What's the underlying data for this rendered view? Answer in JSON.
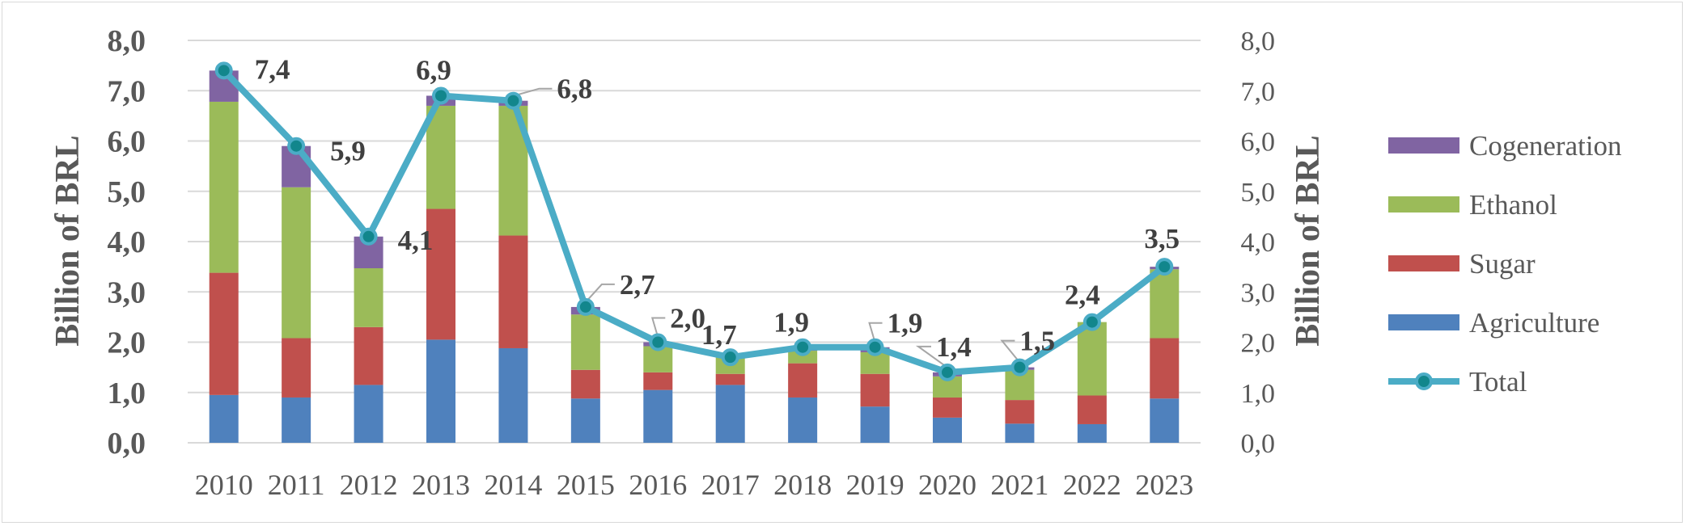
{
  "chart_data": {
    "type": "bar",
    "stacked": true,
    "categories": [
      "2010",
      "2011",
      "2012",
      "2013",
      "2014",
      "2015",
      "2016",
      "2017",
      "2018",
      "2019",
      "2020",
      "2021",
      "2022",
      "2023"
    ],
    "series": [
      {
        "name": "Agriculture",
        "kind": "bar",
        "color": "#4f81bd",
        "values": [
          0.95,
          0.9,
          1.15,
          2.05,
          1.88,
          0.88,
          1.05,
          1.15,
          0.9,
          0.72,
          0.5,
          0.38,
          0.37,
          0.88
        ]
      },
      {
        "name": "Sugar",
        "kind": "bar",
        "color": "#c0504d",
        "values": [
          2.43,
          1.18,
          1.15,
          2.6,
          2.24,
          0.57,
          0.35,
          0.22,
          0.68,
          0.65,
          0.4,
          0.47,
          0.57,
          1.2
        ]
      },
      {
        "name": "Ethanol",
        "kind": "bar",
        "color": "#9bbb59",
        "values": [
          3.4,
          3.0,
          1.17,
          2.05,
          2.58,
          1.1,
          0.52,
          0.33,
          0.25,
          0.43,
          0.42,
          0.6,
          1.46,
          1.37
        ]
      },
      {
        "name": "Cogeneration",
        "kind": "bar",
        "color": "#8064a2",
        "values": [
          0.62,
          0.82,
          0.63,
          0.2,
          0.1,
          0.15,
          0.08,
          0.0,
          0.07,
          0.1,
          0.08,
          0.05,
          0.0,
          0.05
        ]
      },
      {
        "name": "Total",
        "kind": "line",
        "color": "#4bacc6",
        "values": [
          7.4,
          5.9,
          4.1,
          6.9,
          6.8,
          2.7,
          2.0,
          1.7,
          1.9,
          1.9,
          1.4,
          1.5,
          2.4,
          3.5
        ]
      }
    ],
    "total_labels": [
      "7,4",
      "5,9",
      "4,1",
      "6,9",
      "6,8",
      "2,7",
      "2,0",
      "1,7",
      "1,9",
      "1,9",
      "1,4",
      "1,5",
      "2,4",
      "3,5"
    ],
    "ylabel": "Billion of BRL",
    "ylabel_right": "Billion of BRL",
    "ylim": [
      0,
      8
    ],
    "yticks": [
      "0,0",
      "1,0",
      "2,0",
      "3,0",
      "4,0",
      "5,0",
      "6,0",
      "7,0",
      "8,0"
    ],
    "grid": true,
    "legend_position": "right",
    "legend_order": [
      "Cogeneration",
      "Ethanol",
      "Sugar",
      "Agriculture",
      "Total"
    ]
  }
}
